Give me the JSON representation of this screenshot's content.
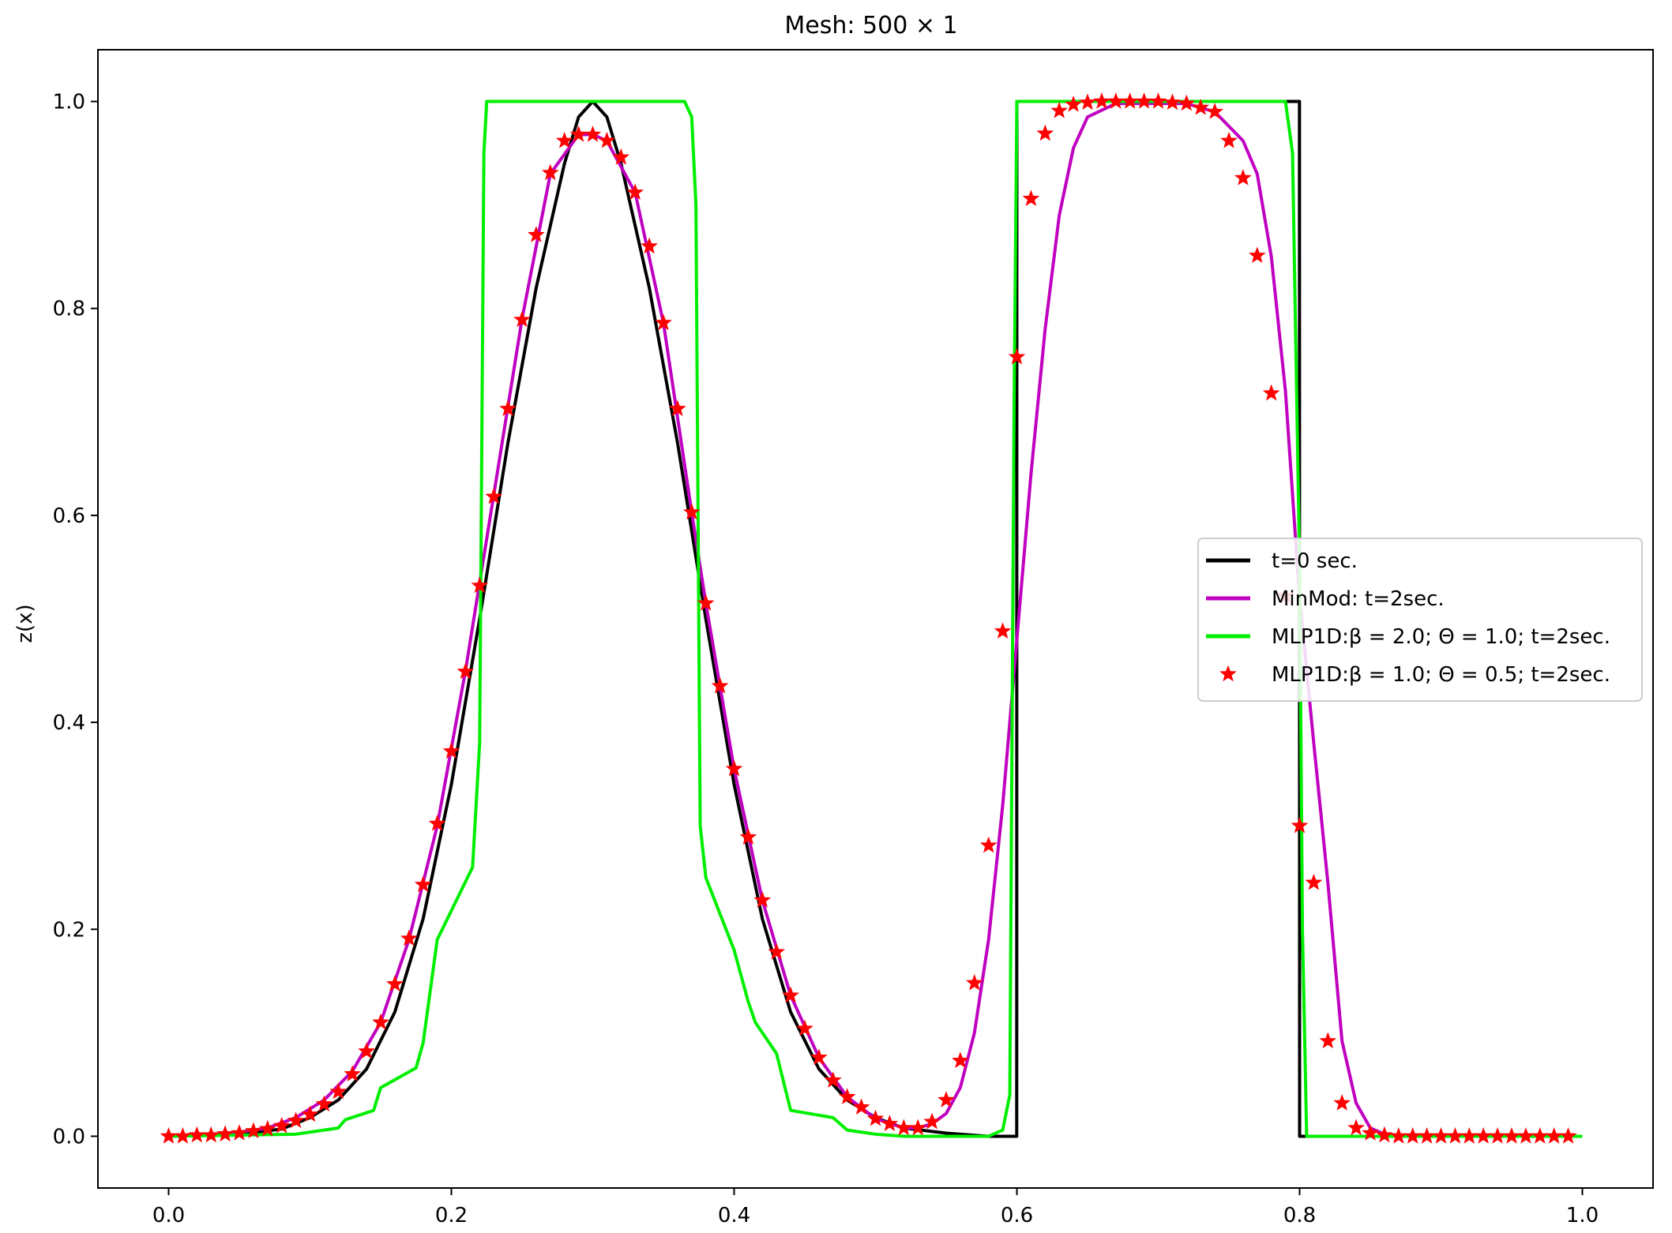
{
  "chart_data": {
    "type": "line",
    "title": "Mesh: 500 × 1",
    "xlabel": "",
    "ylabel": "z(x)",
    "xlim": [
      -0.05,
      1.05
    ],
    "ylim": [
      -0.05,
      1.05
    ],
    "xticks": [
      0.0,
      0.2,
      0.4,
      0.6,
      0.8,
      1.0
    ],
    "xtick_labels": [
      "0.0",
      "0.2",
      "0.4",
      "0.6",
      "0.8",
      "1.0"
    ],
    "yticks": [
      0.0,
      0.2,
      0.4,
      0.6,
      0.8,
      1.0
    ],
    "ytick_labels": [
      "0.0",
      "0.2",
      "0.4",
      "0.6",
      "0.8",
      "1.0"
    ],
    "grid": false,
    "legend_position": "center-right",
    "legend_entries": [
      "t=0 sec.",
      "MinMod: t=2sec.",
      "MLP1D:β = 2.0; Θ = 1.0; t=2sec.",
      "MLP1D:β = 1.0; Θ = 0.5; t=2sec."
    ],
    "series": [
      {
        "name": "t=0 sec.",
        "color": "#000000",
        "style": "line",
        "points": [
          [
            0.0,
            0.0
          ],
          [
            0.05,
            0.002
          ],
          [
            0.08,
            0.007
          ],
          [
            0.1,
            0.018
          ],
          [
            0.12,
            0.035
          ],
          [
            0.14,
            0.065
          ],
          [
            0.16,
            0.12
          ],
          [
            0.18,
            0.21
          ],
          [
            0.2,
            0.34
          ],
          [
            0.22,
            0.5
          ],
          [
            0.24,
            0.67
          ],
          [
            0.26,
            0.82
          ],
          [
            0.28,
            0.94
          ],
          [
            0.29,
            0.985
          ],
          [
            0.3,
            1.0
          ],
          [
            0.31,
            0.985
          ],
          [
            0.32,
            0.94
          ],
          [
            0.34,
            0.82
          ],
          [
            0.36,
            0.67
          ],
          [
            0.38,
            0.5
          ],
          [
            0.4,
            0.34
          ],
          [
            0.42,
            0.21
          ],
          [
            0.44,
            0.12
          ],
          [
            0.46,
            0.065
          ],
          [
            0.48,
            0.035
          ],
          [
            0.5,
            0.018
          ],
          [
            0.52,
            0.008
          ],
          [
            0.55,
            0.003
          ],
          [
            0.58,
            0.0
          ],
          [
            0.5999,
            0.0
          ],
          [
            0.6,
            1.0
          ],
          [
            0.7999,
            1.0
          ],
          [
            0.8,
            0.0
          ],
          [
            1.0,
            0.0
          ]
        ]
      },
      {
        "name": "MinMod: t=2sec.",
        "color": "#c000c0",
        "style": "line",
        "points": [
          [
            0.0,
            0.0
          ],
          [
            0.03,
            0.001
          ],
          [
            0.05,
            0.004
          ],
          [
            0.07,
            0.008
          ],
          [
            0.09,
            0.018
          ],
          [
            0.11,
            0.035
          ],
          [
            0.13,
            0.063
          ],
          [
            0.15,
            0.11
          ],
          [
            0.17,
            0.19
          ],
          [
            0.19,
            0.3
          ],
          [
            0.21,
            0.45
          ],
          [
            0.23,
            0.62
          ],
          [
            0.25,
            0.79
          ],
          [
            0.27,
            0.93
          ],
          [
            0.29,
            0.968
          ],
          [
            0.3,
            0.968
          ],
          [
            0.31,
            0.962
          ],
          [
            0.33,
            0.912
          ],
          [
            0.35,
            0.786
          ],
          [
            0.37,
            0.603
          ],
          [
            0.38,
            0.515
          ],
          [
            0.4,
            0.355
          ],
          [
            0.42,
            0.228
          ],
          [
            0.44,
            0.136
          ],
          [
            0.46,
            0.076
          ],
          [
            0.48,
            0.038
          ],
          [
            0.5,
            0.017
          ],
          [
            0.52,
            0.008
          ],
          [
            0.53,
            0.008
          ],
          [
            0.54,
            0.012
          ],
          [
            0.55,
            0.022
          ],
          [
            0.56,
            0.047
          ],
          [
            0.57,
            0.1
          ],
          [
            0.58,
            0.19
          ],
          [
            0.59,
            0.32
          ],
          [
            0.6,
            0.48
          ],
          [
            0.61,
            0.64
          ],
          [
            0.62,
            0.78
          ],
          [
            0.63,
            0.89
          ],
          [
            0.64,
            0.955
          ],
          [
            0.65,
            0.985
          ],
          [
            0.67,
            0.998
          ],
          [
            0.72,
            0.998
          ],
          [
            0.74,
            0.99
          ],
          [
            0.76,
            0.962
          ],
          [
            0.77,
            0.93
          ],
          [
            0.78,
            0.85
          ],
          [
            0.79,
            0.72
          ],
          [
            0.8,
            0.52
          ],
          [
            0.81,
            0.38
          ],
          [
            0.82,
            0.245
          ],
          [
            0.83,
            0.092
          ],
          [
            0.84,
            0.032
          ],
          [
            0.85,
            0.008
          ],
          [
            0.86,
            0.002
          ],
          [
            0.87,
            0.0
          ],
          [
            1.0,
            0.0
          ]
        ]
      },
      {
        "name": "MLP1D:β = 2.0; Θ = 1.0; t=2sec.",
        "color": "#00ee00",
        "style": "line",
        "points": [
          [
            0.0,
            0.0
          ],
          [
            0.09,
            0.002
          ],
          [
            0.12,
            0.008
          ],
          [
            0.125,
            0.016
          ],
          [
            0.145,
            0.025
          ],
          [
            0.15,
            0.047
          ],
          [
            0.175,
            0.066
          ],
          [
            0.18,
            0.09
          ],
          [
            0.19,
            0.19
          ],
          [
            0.215,
            0.26
          ],
          [
            0.22,
            0.38
          ],
          [
            0.223,
            0.95
          ],
          [
            0.225,
            1.0
          ],
          [
            0.365,
            1.0
          ],
          [
            0.37,
            0.985
          ],
          [
            0.373,
            0.9
          ],
          [
            0.376,
            0.3
          ],
          [
            0.38,
            0.25
          ],
          [
            0.4,
            0.18
          ],
          [
            0.41,
            0.13
          ],
          [
            0.415,
            0.11
          ],
          [
            0.43,
            0.08
          ],
          [
            0.44,
            0.025
          ],
          [
            0.47,
            0.018
          ],
          [
            0.48,
            0.006
          ],
          [
            0.5,
            0.002
          ],
          [
            0.52,
            0.0
          ],
          [
            0.58,
            0.0
          ],
          [
            0.59,
            0.006
          ],
          [
            0.595,
            0.04
          ],
          [
            0.598,
            0.7
          ],
          [
            0.6,
            1.0
          ],
          [
            0.79,
            1.0
          ],
          [
            0.795,
            0.95
          ],
          [
            0.8,
            0.55
          ],
          [
            0.802,
            0.2
          ],
          [
            0.805,
            0.0
          ],
          [
            1.0,
            0.0
          ]
        ]
      },
      {
        "name": "MLP1D:β = 1.0; Θ = 0.5; t=2sec.",
        "color": "#ff0000",
        "style": "markers",
        "marker": "star",
        "points": [
          [
            0.0,
            0.0
          ],
          [
            0.01,
            0.0
          ],
          [
            0.02,
            0.001
          ],
          [
            0.03,
            0.001
          ],
          [
            0.04,
            0.002
          ],
          [
            0.05,
            0.003
          ],
          [
            0.06,
            0.005
          ],
          [
            0.07,
            0.007
          ],
          [
            0.08,
            0.01
          ],
          [
            0.09,
            0.015
          ],
          [
            0.1,
            0.021
          ],
          [
            0.11,
            0.031
          ],
          [
            0.12,
            0.043
          ],
          [
            0.13,
            0.06
          ],
          [
            0.14,
            0.082
          ],
          [
            0.15,
            0.11
          ],
          [
            0.16,
            0.147
          ],
          [
            0.17,
            0.191
          ],
          [
            0.18,
            0.243
          ],
          [
            0.19,
            0.302
          ],
          [
            0.2,
            0.372
          ],
          [
            0.21,
            0.449
          ],
          [
            0.22,
            0.532
          ],
          [
            0.23,
            0.618
          ],
          [
            0.24,
            0.703
          ],
          [
            0.25,
            0.789
          ],
          [
            0.26,
            0.871
          ],
          [
            0.27,
            0.931
          ],
          [
            0.28,
            0.962
          ],
          [
            0.29,
            0.968
          ],
          [
            0.3,
            0.968
          ],
          [
            0.31,
            0.962
          ],
          [
            0.32,
            0.946
          ],
          [
            0.33,
            0.912
          ],
          [
            0.34,
            0.86
          ],
          [
            0.35,
            0.786
          ],
          [
            0.36,
            0.703
          ],
          [
            0.37,
            0.603
          ],
          [
            0.38,
            0.515
          ],
          [
            0.39,
            0.435
          ],
          [
            0.4,
            0.355
          ],
          [
            0.41,
            0.289
          ],
          [
            0.42,
            0.228
          ],
          [
            0.43,
            0.178
          ],
          [
            0.44,
            0.136
          ],
          [
            0.45,
            0.104
          ],
          [
            0.46,
            0.076
          ],
          [
            0.47,
            0.054
          ],
          [
            0.48,
            0.038
          ],
          [
            0.49,
            0.028
          ],
          [
            0.5,
            0.017
          ],
          [
            0.51,
            0.012
          ],
          [
            0.52,
            0.008
          ],
          [
            0.53,
            0.008
          ],
          [
            0.54,
            0.014
          ],
          [
            0.55,
            0.035
          ],
          [
            0.56,
            0.073
          ],
          [
            0.57,
            0.148
          ],
          [
            0.58,
            0.281
          ],
          [
            0.59,
            0.488
          ],
          [
            0.6,
            0.753
          ],
          [
            0.61,
            0.906
          ],
          [
            0.62,
            0.969
          ],
          [
            0.63,
            0.991
          ],
          [
            0.64,
            0.997
          ],
          [
            0.65,
            0.999
          ],
          [
            0.66,
            1.0
          ],
          [
            0.67,
            1.0
          ],
          [
            0.68,
            1.0
          ],
          [
            0.69,
            1.0
          ],
          [
            0.7,
            1.0
          ],
          [
            0.71,
            0.999
          ],
          [
            0.72,
            0.998
          ],
          [
            0.73,
            0.994
          ],
          [
            0.74,
            0.99
          ],
          [
            0.75,
            0.962
          ],
          [
            0.76,
            0.926
          ],
          [
            0.77,
            0.851
          ],
          [
            0.78,
            0.718
          ],
          [
            0.79,
            0.522
          ],
          [
            0.8,
            0.3
          ],
          [
            0.81,
            0.245
          ],
          [
            0.82,
            0.092
          ],
          [
            0.83,
            0.032
          ],
          [
            0.84,
            0.008
          ],
          [
            0.85,
            0.003
          ],
          [
            0.86,
            0.001
          ],
          [
            0.87,
            0.0
          ],
          [
            0.88,
            0.0
          ],
          [
            0.89,
            0.0
          ],
          [
            0.9,
            0.0
          ],
          [
            0.91,
            0.0
          ],
          [
            0.92,
            0.0
          ],
          [
            0.93,
            0.0
          ],
          [
            0.94,
            0.0
          ],
          [
            0.95,
            0.0
          ],
          [
            0.96,
            0.0
          ],
          [
            0.97,
            0.0
          ],
          [
            0.98,
            0.0
          ],
          [
            0.99,
            0.0
          ]
        ]
      }
    ]
  }
}
